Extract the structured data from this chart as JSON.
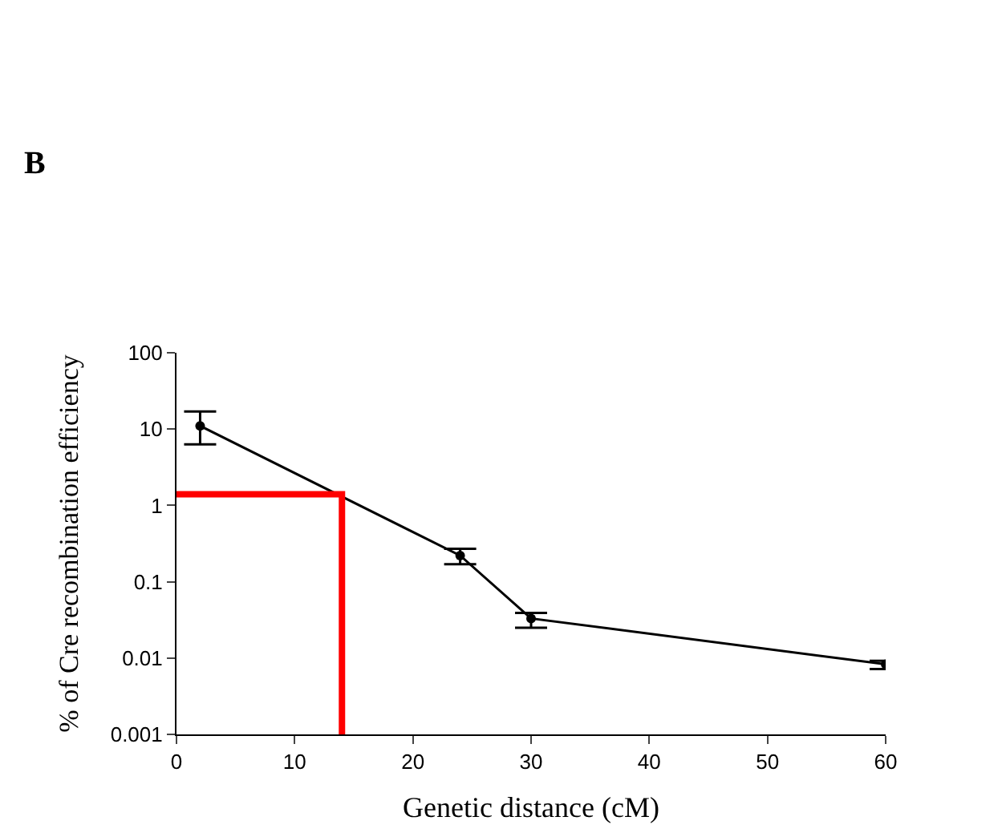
{
  "chart_data": {
    "type": "line",
    "xlabel": "Genetic distance (cM)",
    "ylabel": "% of Cre recombination efficiency",
    "annotations": [
      "B"
    ],
    "log": "y",
    "marker": "circle",
    "line_style": "solid",
    "xlim": [
      0,
      60
    ],
    "xticks": [
      0,
      10,
      20,
      30,
      40,
      50,
      60
    ],
    "ylim": [
      0.001,
      100
    ],
    "yticks": [
      0.001,
      0.01,
      0.1,
      1,
      10,
      100
    ],
    "series": [
      {
        "color": "#000000",
        "x": [
          2,
          24,
          30,
          60
        ],
        "values": [
          11,
          0.22,
          0.033,
          0.0083
        ],
        "errors": [
          [
            6.3,
            17
          ],
          [
            0.17,
            0.27
          ],
          [
            0.025,
            0.039
          ],
          [
            0.0072,
            0.0092
          ]
        ]
      },
      {
        "color": "#ff0000",
        "type": "line",
        "marker": "none",
        "x": [
          0,
          14,
          14
        ],
        "values": [
          1.4,
          1.4,
          0.001
        ]
      }
    ]
  }
}
